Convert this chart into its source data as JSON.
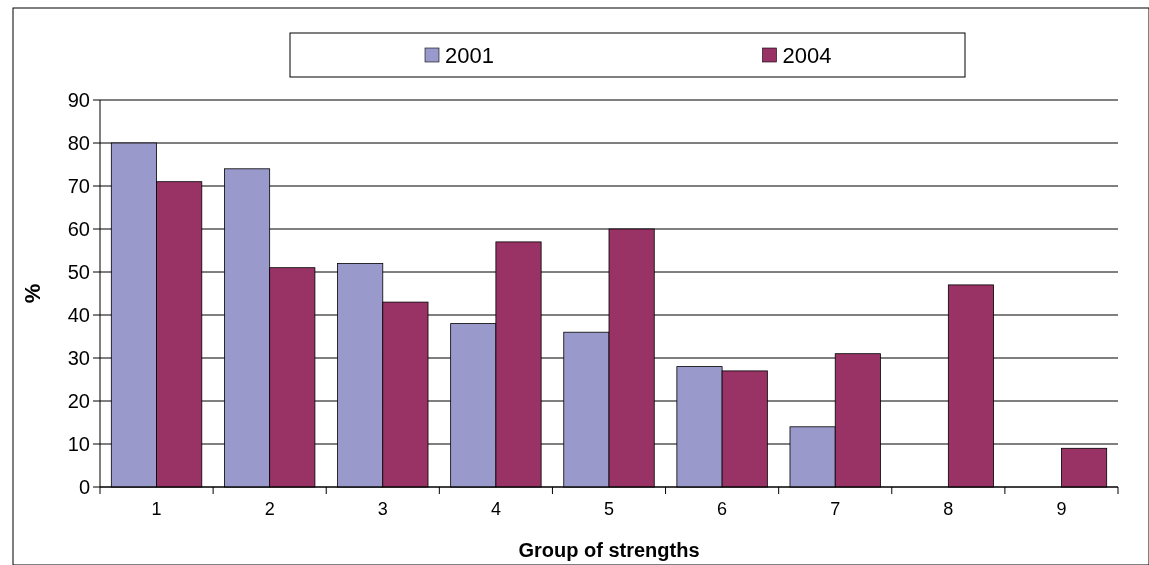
{
  "chart_data": {
    "type": "bar",
    "xlabel": "Group of strengths",
    "ylabel": "%",
    "categories": [
      "1",
      "2",
      "3",
      "4",
      "5",
      "6",
      "7",
      "8",
      "9"
    ],
    "series": [
      {
        "name": "2001",
        "color": "#9999cc",
        "values": [
          80,
          74,
          52,
          38,
          36,
          28,
          14,
          null,
          null
        ]
      },
      {
        "name": "2004",
        "color": "#993366",
        "values": [
          71,
          51,
          43,
          57,
          60,
          27,
          31,
          47,
          9
        ]
      }
    ],
    "ylim": [
      0,
      90
    ],
    "yticks": [
      0,
      10,
      20,
      30,
      40,
      50,
      60,
      70,
      80,
      90
    ],
    "grid": "y",
    "legend": "top"
  }
}
